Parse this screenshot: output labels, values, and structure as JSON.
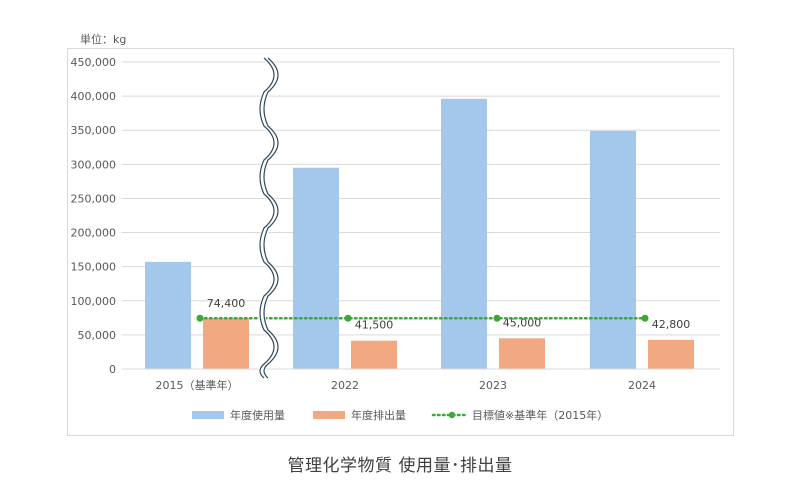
{
  "chart_data": {
    "type": "bar",
    "title": "管理化学物質 使用量･排出量",
    "unit_label": "単位：kg",
    "xlabel": "",
    "ylabel": "",
    "ylim": [
      0,
      450000
    ],
    "yticks": [
      0,
      50000,
      100000,
      150000,
      200000,
      250000,
      300000,
      350000,
      400000,
      450000
    ],
    "ytick_labels": [
      "0",
      "50,000",
      "100,000",
      "150,000",
      "200,000",
      "250,000",
      "300,000",
      "350,000",
      "400,000",
      "450,000"
    ],
    "grid": true,
    "axis_break_between": [
      "2015（基準年）",
      "2022"
    ],
    "categories": [
      "2015（基準年）",
      "2022",
      "2023",
      "2024"
    ],
    "series": [
      {
        "name": "年度使用量",
        "type": "bar",
        "color": "#a4c8ec",
        "values": [
          157000,
          295000,
          396000,
          349000
        ]
      },
      {
        "name": "年度排出量",
        "type": "bar",
        "color": "#f2a982",
        "values": [
          74400,
          41500,
          45000,
          42800
        ],
        "data_labels": [
          "74,400",
          "41,500",
          "45,000",
          "42,800"
        ]
      },
      {
        "name": "目標値※基準年（2015年）",
        "type": "line",
        "style": "dotted",
        "color": "#3aa935",
        "values": [
          74400,
          74400,
          74400,
          74400
        ]
      }
    ],
    "legend_position": "bottom"
  },
  "labels": {
    "unit": "単位：kg",
    "caption": "管理化学物質 使用量･排出量"
  }
}
